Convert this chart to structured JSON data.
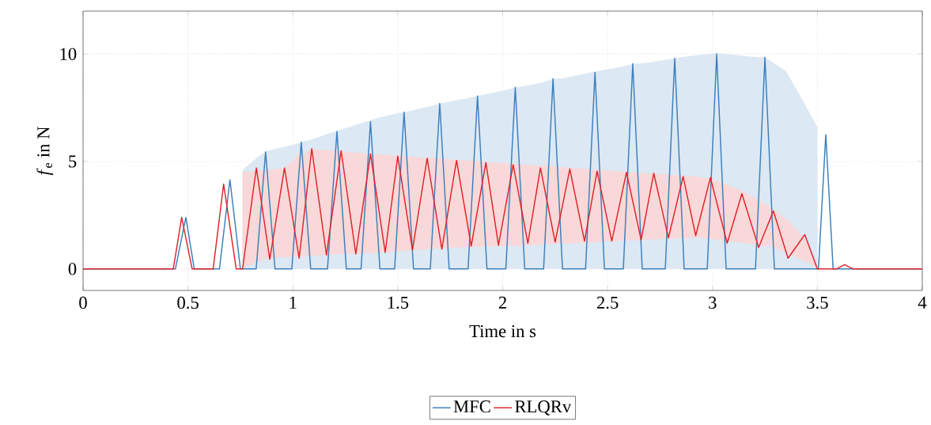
{
  "chart_data": {
    "type": "line",
    "xlabel": "Time in s",
    "ylabel": "*f*$_{e}$ in N",
    "xlim": [
      0,
      4
    ],
    "ylim": [
      -1,
      12
    ],
    "xticks": [
      0,
      0.5,
      1,
      1.5,
      2,
      2.5,
      3,
      3.5,
      4
    ],
    "yticks": [
      0,
      5,
      10
    ],
    "grid": true,
    "legend": "bottom",
    "marker": "none",
    "line_style": "solid",
    "series": [
      {
        "name": "MFC",
        "color": "#3d7fbd",
        "x": [
          0,
          0.44,
          0.49,
          0.53,
          0.65,
          0.7,
          0.75,
          0.76,
          0.825,
          0.87,
          0.915,
          0.995,
          1.04,
          1.085,
          1.165,
          1.21,
          1.255,
          1.325,
          1.37,
          1.415,
          1.485,
          1.53,
          1.575,
          1.655,
          1.7,
          1.745,
          1.835,
          1.88,
          1.925,
          2.015,
          2.06,
          2.105,
          2.195,
          2.24,
          2.285,
          2.395,
          2.44,
          2.485,
          2.575,
          2.62,
          2.665,
          2.775,
          2.82,
          2.865,
          2.975,
          3.02,
          3.065,
          3.205,
          3.25,
          3.295,
          3.35,
          3.41,
          3.5,
          3.505,
          3.54,
          3.575,
          4
        ],
        "values": [
          0,
          0,
          2.4,
          0,
          0,
          4.15,
          0,
          0,
          0,
          5.45,
          0,
          0,
          5.9,
          0,
          0,
          6.4,
          0,
          0,
          6.85,
          0,
          0,
          7.3,
          0,
          0,
          7.7,
          0,
          0,
          8.05,
          0,
          0,
          8.45,
          0,
          0,
          8.85,
          0,
          0,
          9.15,
          0,
          0,
          9.55,
          0,
          0,
          9.8,
          0,
          0,
          10.0,
          0,
          0,
          9.85,
          0,
          0,
          0,
          0,
          0,
          6.25,
          0,
          0
        ],
        "lower": [
          null,
          null,
          null,
          null,
          null,
          null,
          null,
          0,
          0,
          0,
          0,
          0,
          0,
          0,
          0,
          0,
          0,
          0,
          0,
          0,
          0,
          0,
          0,
          0,
          0,
          0,
          0,
          0,
          0,
          0,
          0,
          0,
          0,
          0,
          0,
          0,
          0,
          0,
          0,
          0,
          0,
          0,
          0,
          0,
          0,
          0,
          0,
          0,
          0,
          0,
          0,
          0,
          0,
          null,
          null,
          null,
          null
        ],
        "upper": [
          null,
          null,
          null,
          null,
          null,
          null,
          null,
          4.6,
          5.15,
          5.47,
          5.58,
          5.77,
          5.9,
          6.02,
          6.28,
          6.42,
          6.56,
          6.78,
          6.92,
          7.06,
          7.21,
          7.3,
          7.4,
          7.57,
          7.7,
          7.78,
          7.95,
          8.05,
          8.14,
          8.33,
          8.45,
          8.51,
          8.69,
          8.85,
          8.87,
          9.09,
          9.18,
          9.27,
          9.42,
          9.55,
          9.56,
          9.73,
          9.8,
          9.87,
          10.0,
          10.05,
          10.0,
          9.86,
          9.85,
          9.57,
          9.2,
          8.2,
          6.6,
          null,
          null,
          null,
          null
        ]
      },
      {
        "name": "RLQRv",
        "color": "#e0242a",
        "x": [
          0,
          0.43,
          0.47,
          0.52,
          0.62,
          0.67,
          0.73,
          0.76,
          0.826,
          0.89,
          0.96,
          1.03,
          1.09,
          1.16,
          1.23,
          1.3,
          1.37,
          1.44,
          1.5,
          1.57,
          1.64,
          1.71,
          1.78,
          1.85,
          1.92,
          1.98,
          2.05,
          2.12,
          2.18,
          2.25,
          2.32,
          2.39,
          2.45,
          2.52,
          2.59,
          2.66,
          2.72,
          2.79,
          2.86,
          2.92,
          2.99,
          3.07,
          3.14,
          3.22,
          3.29,
          3.36,
          3.44,
          3.5,
          3.59,
          3.63,
          3.67,
          4
        ],
        "values": [
          0,
          0,
          2.4,
          0,
          0,
          3.95,
          0,
          0,
          4.7,
          0.45,
          4.7,
          0.5,
          5.6,
          0.65,
          5.5,
          0.7,
          5.35,
          0.77,
          5.25,
          0.88,
          5.15,
          0.92,
          5.05,
          1.07,
          4.95,
          1.1,
          4.85,
          1.2,
          4.7,
          1.25,
          4.65,
          1.3,
          4.55,
          1.3,
          4.5,
          1.35,
          4.45,
          1.45,
          4.3,
          1.55,
          4.25,
          1.2,
          3.5,
          1.0,
          2.7,
          0.5,
          1.6,
          0,
          0,
          0.2,
          0,
          0
        ],
        "lower": [
          null,
          null,
          null,
          null,
          null,
          null,
          null,
          0,
          0.33,
          0.51,
          0.55,
          0.59,
          0.61,
          0.64,
          0.69,
          0.72,
          0.75,
          0.78,
          0.81,
          0.87,
          0.92,
          0.96,
          1.0,
          1.02,
          1.04,
          1.05,
          1.07,
          1.1,
          1.13,
          1.16,
          1.19,
          1.23,
          1.25,
          1.29,
          1.32,
          1.35,
          1.38,
          1.41,
          1.44,
          1.47,
          1.41,
          1.3,
          1.22,
          1.11,
          1.0,
          0.71,
          0.35,
          0.05,
          null,
          null,
          null,
          null
        ],
        "upper": [
          null,
          null,
          null,
          null,
          null,
          null,
          null,
          4.5,
          4.56,
          4.62,
          4.69,
          5.3,
          5.58,
          5.52,
          5.47,
          5.41,
          5.36,
          5.31,
          5.27,
          5.22,
          5.17,
          5.13,
          5.08,
          5.03,
          4.98,
          4.94,
          4.89,
          4.85,
          4.81,
          4.76,
          4.71,
          4.66,
          4.62,
          4.57,
          4.52,
          4.47,
          4.43,
          4.39,
          4.34,
          4.3,
          4.21,
          3.92,
          3.63,
          3.2,
          2.8,
          2.25,
          1.43,
          0.1,
          null,
          null,
          null,
          null
        ]
      }
    ]
  }
}
